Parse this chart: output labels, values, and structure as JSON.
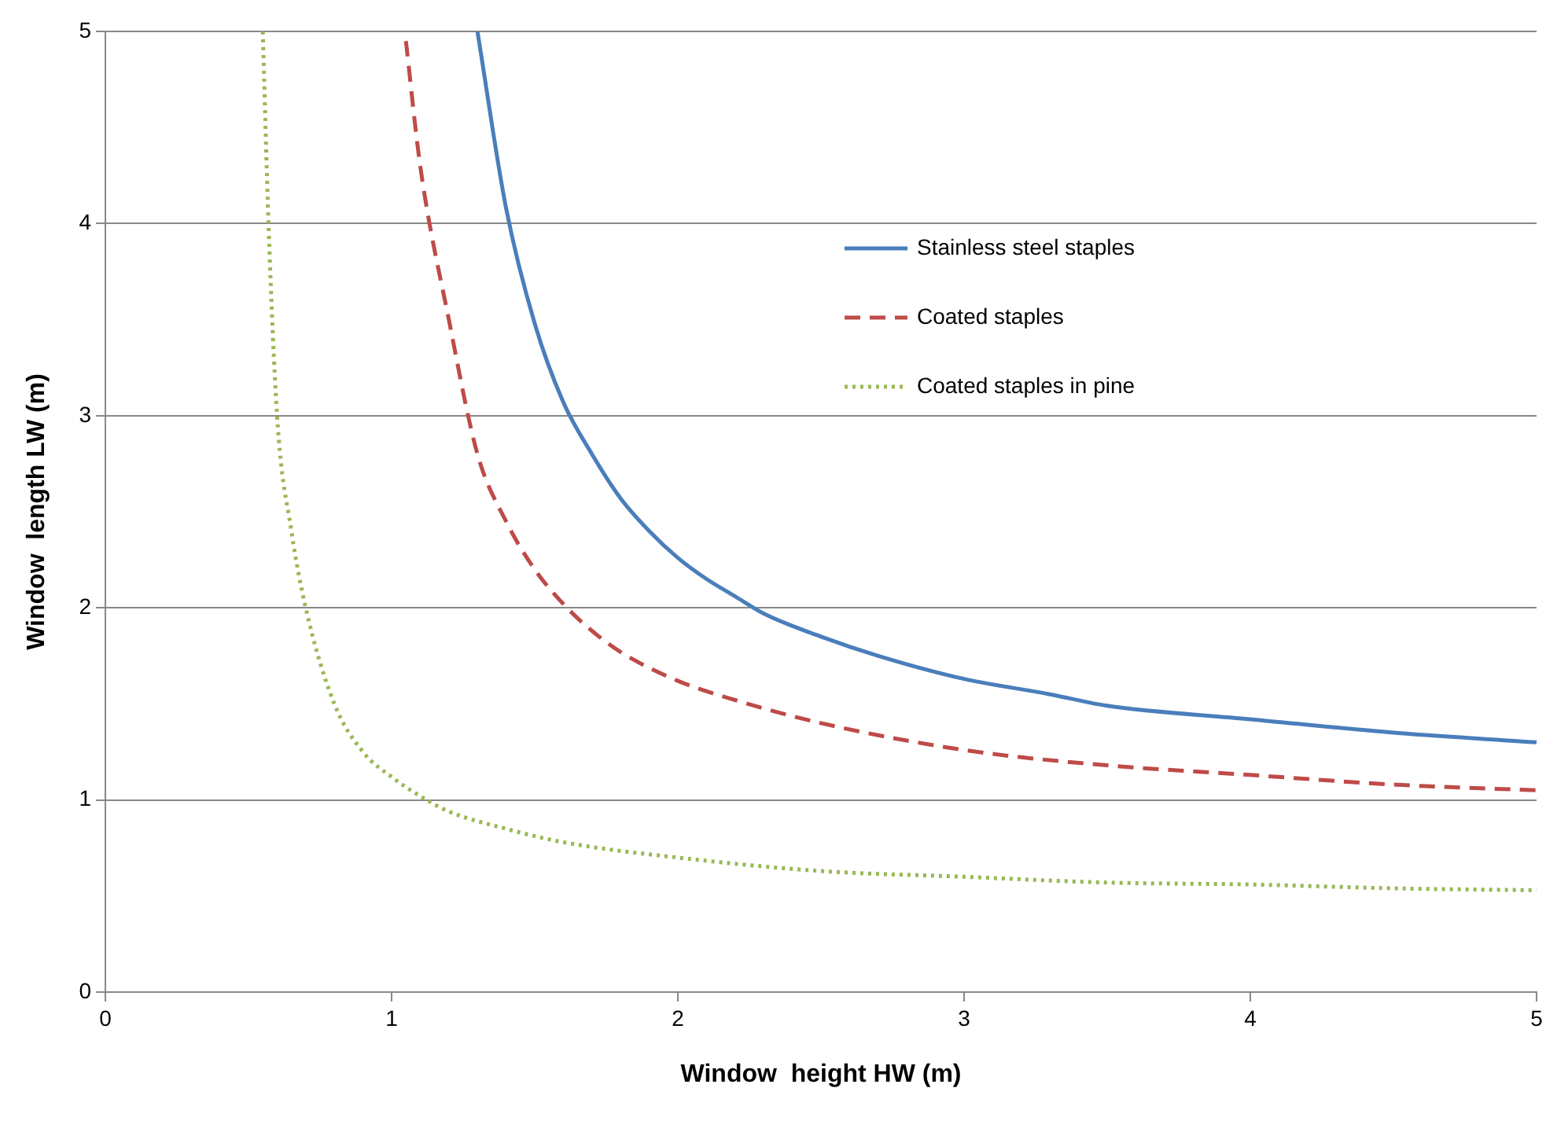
{
  "chart_data": {
    "type": "line",
    "xlabel": "Window  height HW (m)",
    "ylabel": "Window  length LW (m)",
    "xlim": [
      0,
      5
    ],
    "xticks": [
      0,
      1,
      2,
      3,
      4,
      5
    ],
    "ylim": [
      0,
      5
    ],
    "yticks": [
      0,
      1,
      2,
      3,
      4,
      5
    ],
    "grid": "y",
    "legend": "top right",
    "marker": "none",
    "series": [
      {
        "name": "Stainless steel staples",
        "color": "#4a7ebb",
        "line_style": "solid",
        "x": [
          1.3,
          1.4,
          1.5,
          1.6,
          1.7,
          1.8,
          1.9,
          2.0,
          2.1,
          2.2,
          2.3,
          2.5,
          2.7,
          3.0,
          3.3,
          3.5,
          4.0,
          4.5,
          5.0
        ],
        "values": [
          5.0,
          4.08,
          3.48,
          3.07,
          2.8,
          2.57,
          2.4,
          2.26,
          2.15,
          2.06,
          1.97,
          1.85,
          1.75,
          1.63,
          1.55,
          1.49,
          1.42,
          1.35,
          1.3
        ]
      },
      {
        "name": "Coated staples",
        "color": "#be4b48",
        "line_style": "dashed",
        "x": [
          1.05,
          1.1,
          1.2,
          1.3,
          1.4,
          1.5,
          1.6,
          1.7,
          1.8,
          2.0,
          2.2,
          2.5,
          3.0,
          3.5,
          4.0,
          4.5,
          5.0
        ],
        "values": [
          4.95,
          4.3,
          3.5,
          2.8,
          2.45,
          2.2,
          2.02,
          1.88,
          1.77,
          1.62,
          1.52,
          1.4,
          1.26,
          1.18,
          1.13,
          1.08,
          1.05
        ]
      },
      {
        "name": "Coated staples in pine",
        "color": "#98b954",
        "line_style": "dotted",
        "x": [
          0.55,
          0.57,
          0.6,
          0.65,
          0.7,
          0.8,
          0.9,
          1.0,
          1.1,
          1.2,
          1.4,
          1.6,
          2.0,
          2.5,
          3.0,
          3.5,
          4.0,
          4.5,
          5.0
        ],
        "values": [
          5.0,
          4.0,
          3.0,
          2.4,
          2.0,
          1.5,
          1.25,
          1.12,
          1.02,
          0.94,
          0.85,
          0.78,
          0.7,
          0.63,
          0.6,
          0.57,
          0.56,
          0.54,
          0.53
        ]
      }
    ]
  }
}
